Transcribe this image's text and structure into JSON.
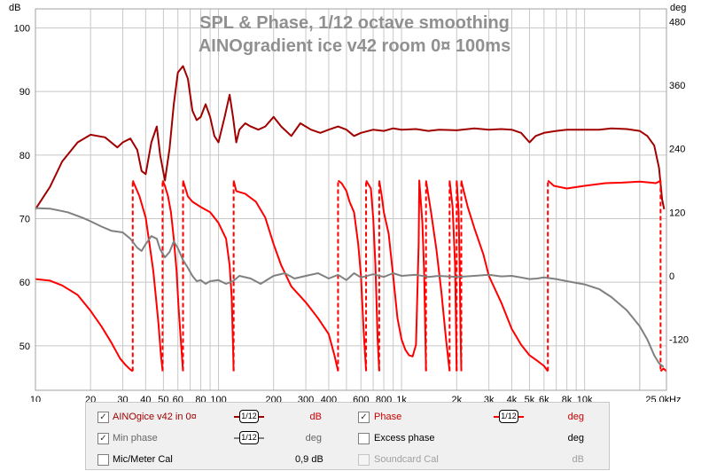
{
  "chart_data": {
    "type": "line",
    "title": "SPL & Phase, 1/12 octave smoothing",
    "subtitle": "AINOgradient ice v42 room 0¤ 100ms",
    "ylabel_left": "dB",
    "ylabel_right": "deg",
    "xlabel_unit": "Hz",
    "xscale": "log",
    "xlim": [
      10,
      28000
    ],
    "ylim_left": [
      43,
      103
    ],
    "ylim_right": [
      -216,
      504
    ],
    "grid": true,
    "x_ticks": [
      {
        "v": 10,
        "label": "10"
      },
      {
        "v": 20,
        "label": "20"
      },
      {
        "v": 30,
        "label": "30"
      },
      {
        "v": 40,
        "label": "40"
      },
      {
        "v": 50,
        "label": "50"
      },
      {
        "v": 60,
        "label": "60"
      },
      {
        "v": 80,
        "label": "80"
      },
      {
        "v": 100,
        "label": "100"
      },
      {
        "v": 200,
        "label": "200"
      },
      {
        "v": 300,
        "label": "300"
      },
      {
        "v": 400,
        "label": "400"
      },
      {
        "v": 600,
        "label": "600"
      },
      {
        "v": 800,
        "label": "800"
      },
      {
        "v": 1000,
        "label": "1k"
      },
      {
        "v": 2000,
        "label": "2k"
      },
      {
        "v": 3000,
        "label": "3k"
      },
      {
        "v": 4000,
        "label": "4k"
      },
      {
        "v": 5000,
        "label": "5k"
      },
      {
        "v": 6000,
        "label": "6k"
      },
      {
        "v": 8000,
        "label": "8k"
      },
      {
        "v": 10000,
        "label": "10k"
      },
      {
        "v": 25000,
        "label": "25,0k"
      }
    ],
    "y_ticks_left": [
      {
        "v": 50,
        "label": "50"
      },
      {
        "v": 60,
        "label": "60"
      },
      {
        "v": 70,
        "label": "70"
      },
      {
        "v": 80,
        "label": "80"
      },
      {
        "v": 90,
        "label": "90"
      },
      {
        "v": 100,
        "label": "100"
      }
    ],
    "y_ticks_right": [
      {
        "v": -120,
        "label": "-120"
      },
      {
        "v": 0,
        "label": "0"
      },
      {
        "v": 120,
        "label": "120"
      },
      {
        "v": 240,
        "label": "240"
      },
      {
        "v": 360,
        "label": "360"
      },
      {
        "v": 480,
        "label": "480"
      }
    ],
    "series": [
      {
        "name": "AINOgice v42 in 0¤",
        "axis": "left",
        "color": "#a00000",
        "points": [
          [
            10,
            71.5
          ],
          [
            12,
            75
          ],
          [
            14,
            79
          ],
          [
            17,
            82
          ],
          [
            20,
            83.2
          ],
          [
            24,
            82.8
          ],
          [
            28,
            81.2
          ],
          [
            30,
            82
          ],
          [
            33,
            82.6
          ],
          [
            36,
            80.8
          ],
          [
            38,
            77.5
          ],
          [
            40,
            77
          ],
          [
            43,
            82
          ],
          [
            46,
            84.5
          ],
          [
            48,
            80
          ],
          [
            51,
            76
          ],
          [
            54,
            81
          ],
          [
            57,
            88
          ],
          [
            60,
            93
          ],
          [
            64,
            94
          ],
          [
            68,
            92
          ],
          [
            72,
            87
          ],
          [
            76,
            85.5
          ],
          [
            80,
            86
          ],
          [
            85,
            88
          ],
          [
            90,
            86
          ],
          [
            95,
            83
          ],
          [
            100,
            82
          ],
          [
            108,
            86
          ],
          [
            115,
            89.5
          ],
          [
            120,
            86
          ],
          [
            125,
            82
          ],
          [
            130,
            84
          ],
          [
            140,
            85
          ],
          [
            150,
            84.5
          ],
          [
            165,
            84
          ],
          [
            180,
            84.5
          ],
          [
            200,
            86
          ],
          [
            220,
            84.5
          ],
          [
            250,
            83
          ],
          [
            280,
            85
          ],
          [
            320,
            84
          ],
          [
            360,
            83.5
          ],
          [
            400,
            84
          ],
          [
            450,
            84.5
          ],
          [
            500,
            84
          ],
          [
            550,
            83
          ],
          [
            600,
            83.5
          ],
          [
            700,
            84
          ],
          [
            800,
            83.8
          ],
          [
            900,
            84.2
          ],
          [
            1000,
            84
          ],
          [
            1200,
            84.1
          ],
          [
            1400,
            83.8
          ],
          [
            1600,
            84
          ],
          [
            2000,
            83.9
          ],
          [
            2500,
            84.2
          ],
          [
            3000,
            84
          ],
          [
            3500,
            84.1
          ],
          [
            4000,
            84
          ],
          [
            4500,
            83.5
          ],
          [
            5000,
            82
          ],
          [
            5400,
            83
          ],
          [
            6000,
            83.5
          ],
          [
            7000,
            83.8
          ],
          [
            8000,
            84
          ],
          [
            10000,
            84
          ],
          [
            12000,
            84
          ],
          [
            14000,
            84.2
          ],
          [
            17000,
            84.1
          ],
          [
            20000,
            83.8
          ],
          [
            22000,
            83
          ],
          [
            24000,
            81.5
          ],
          [
            25500,
            78
          ],
          [
            26500,
            73
          ],
          [
            27200,
            71.5
          ]
        ]
      },
      {
        "name": "Phase",
        "axis": "right",
        "color": "#ff0000",
        "dashed_wraps": true,
        "points": [
          [
            10,
            -6
          ],
          [
            12,
            -9
          ],
          [
            14,
            -18
          ],
          [
            17,
            -36
          ],
          [
            20,
            -66
          ],
          [
            23,
            -96
          ],
          [
            26,
            -126
          ],
          [
            29,
            -156
          ],
          [
            31,
            -168
          ],
          [
            33,
            -177
          ],
          [
            34,
            -180
          ],
          [
            34,
            180
          ],
          [
            37,
            150
          ],
          [
            40,
            110
          ],
          [
            42,
            60
          ],
          [
            44,
            10
          ],
          [
            45.5,
            -40
          ],
          [
            47,
            -90
          ],
          [
            48.5,
            -150
          ],
          [
            49.5,
            -180
          ],
          [
            49.5,
            180
          ],
          [
            51,
            170
          ],
          [
            53,
            150
          ],
          [
            55,
            120
          ],
          [
            57,
            70
          ],
          [
            59,
            10
          ],
          [
            60.5,
            -60
          ],
          [
            62.5,
            -130
          ],
          [
            64,
            -180
          ],
          [
            64,
            180
          ],
          [
            68,
            150
          ],
          [
            72,
            140
          ],
          [
            80,
            130
          ],
          [
            90,
            120
          ],
          [
            100,
            100
          ],
          [
            110,
            70
          ],
          [
            115,
            20
          ],
          [
            118,
            -40
          ],
          [
            120,
            -130
          ],
          [
            121,
            -180
          ],
          [
            121,
            180
          ],
          [
            125,
            160
          ],
          [
            140,
            155
          ],
          [
            160,
            140
          ],
          [
            180,
            110
          ],
          [
            200,
            60
          ],
          [
            220,
            20
          ],
          [
            250,
            -20
          ],
          [
            300,
            -50
          ],
          [
            350,
            -80
          ],
          [
            400,
            -110
          ],
          [
            430,
            -150
          ],
          [
            450,
            -180
          ],
          [
            450,
            180
          ],
          [
            470,
            175
          ],
          [
            500,
            160
          ],
          [
            520,
            140
          ],
          [
            550,
            120
          ],
          [
            580,
            60
          ],
          [
            600,
            0
          ],
          [
            620,
            -100
          ],
          [
            640,
            -180
          ],
          [
            640,
            180
          ],
          [
            680,
            165
          ],
          [
            700,
            110
          ],
          [
            720,
            20
          ],
          [
            740,
            -120
          ],
          [
            755,
            -180
          ],
          [
            755,
            180
          ],
          [
            780,
            150
          ],
          [
            800,
            120
          ],
          [
            850,
            80
          ],
          [
            900,
            0
          ],
          [
            950,
            -80
          ],
          [
            1000,
            -120
          ],
          [
            1050,
            -140
          ],
          [
            1100,
            -150
          ],
          [
            1150,
            -152
          ],
          [
            1200,
            -130
          ],
          [
            1240,
            60
          ],
          [
            1250,
            180
          ],
          [
            1250,
            180
          ],
          [
            1300,
            100
          ],
          [
            1330,
            0
          ],
          [
            1360,
            -180
          ],
          [
            1360,
            180
          ],
          [
            1450,
            120
          ],
          [
            1550,
            50
          ],
          [
            1650,
            -30
          ],
          [
            1750,
            -120
          ],
          [
            1830,
            -180
          ],
          [
            1830,
            180
          ],
          [
            1900,
            130
          ],
          [
            1960,
            20
          ],
          [
            2000,
            -180
          ],
          [
            2000,
            180
          ],
          [
            2050,
            120
          ],
          [
            2080,
            0
          ],
          [
            2100,
            -100
          ],
          [
            2120,
            -180
          ],
          [
            2120,
            180
          ],
          [
            2150,
            170
          ],
          [
            2300,
            130
          ],
          [
            2500,
            90
          ],
          [
            2800,
            40
          ],
          [
            3000,
            0
          ],
          [
            3500,
            -50
          ],
          [
            4000,
            -100
          ],
          [
            4500,
            -130
          ],
          [
            5000,
            -150
          ],
          [
            5500,
            -160
          ],
          [
            6000,
            -170
          ],
          [
            6300,
            -180
          ],
          [
            6300,
            180
          ],
          [
            6800,
            170
          ],
          [
            8000,
            165
          ],
          [
            10000,
            170
          ],
          [
            13000,
            175
          ],
          [
            16000,
            176
          ],
          [
            20000,
            178
          ],
          [
            23000,
            176
          ],
          [
            24500,
            175
          ],
          [
            25500,
            178
          ],
          [
            26000,
            180
          ],
          [
            26000,
            -180
          ],
          [
            27000,
            -175
          ],
          [
            28000,
            -180
          ]
        ]
      },
      {
        "name": "Min phase",
        "axis": "right",
        "color": "#808080",
        "points": [
          [
            10,
            128
          ],
          [
            12,
            127
          ],
          [
            15,
            120
          ],
          [
            18,
            110
          ],
          [
            20,
            103
          ],
          [
            23,
            93
          ],
          [
            26,
            85
          ],
          [
            30,
            82
          ],
          [
            33,
            70
          ],
          [
            36,
            53
          ],
          [
            38,
            47
          ],
          [
            40,
            60
          ],
          [
            43,
            75
          ],
          [
            46,
            70
          ],
          [
            48,
            50
          ],
          [
            51,
            35
          ],
          [
            54,
            45
          ],
          [
            57,
            65
          ],
          [
            60,
            52
          ],
          [
            64,
            30
          ],
          [
            68,
            15
          ],
          [
            72,
            0
          ],
          [
            76,
            -10
          ],
          [
            80,
            -8
          ],
          [
            85,
            -15
          ],
          [
            90,
            -10
          ],
          [
            100,
            -8
          ],
          [
            110,
            -15
          ],
          [
            120,
            -10
          ],
          [
            130,
            0
          ],
          [
            150,
            -5
          ],
          [
            170,
            -15
          ],
          [
            200,
            0
          ],
          [
            230,
            5
          ],
          [
            260,
            -5
          ],
          [
            300,
            0
          ],
          [
            350,
            5
          ],
          [
            400,
            -5
          ],
          [
            450,
            2
          ],
          [
            500,
            -8
          ],
          [
            550,
            5
          ],
          [
            600,
            -3
          ],
          [
            700,
            3
          ],
          [
            800,
            -2
          ],
          [
            900,
            5
          ],
          [
            1000,
            0
          ],
          [
            1200,
            2
          ],
          [
            1400,
            -2
          ],
          [
            1600,
            0
          ],
          [
            2000,
            -2
          ],
          [
            2500,
            0
          ],
          [
            3000,
            2
          ],
          [
            3500,
            -1
          ],
          [
            4000,
            0
          ],
          [
            4500,
            -3
          ],
          [
            5000,
            -6
          ],
          [
            5500,
            -5
          ],
          [
            6000,
            -3
          ],
          [
            7000,
            -6
          ],
          [
            8000,
            -10
          ],
          [
            10000,
            -16
          ],
          [
            12000,
            -25
          ],
          [
            14000,
            -40
          ],
          [
            17000,
            -65
          ],
          [
            20000,
            -95
          ],
          [
            22000,
            -120
          ],
          [
            24000,
            -150
          ],
          [
            25500,
            -165
          ],
          [
            27000,
            -172
          ]
        ]
      }
    ]
  },
  "legend": {
    "row1": {
      "label": "AINOgice v42 in 0¤",
      "smoothing": "1/12",
      "unit": "dB",
      "checked": "✓",
      "label2": "Phase",
      "smoothing2": "1/12",
      "unit2": "deg",
      "checked2": "✓"
    },
    "row2": {
      "label": "Min phase",
      "smoothing": "1/12",
      "unit": "deg",
      "checked": "✓",
      "label2": "Excess phase",
      "unit2": "deg"
    },
    "row3": {
      "label": "Mic/Meter Cal",
      "value": "0,9 dB",
      "label2": "Soundcard Cal",
      "unit2": "dB"
    }
  },
  "colors": {
    "spl": "#a00000",
    "phase": "#ff0000",
    "min_phase": "#808080",
    "grid": "#c8c8c8",
    "title": "#909090"
  }
}
